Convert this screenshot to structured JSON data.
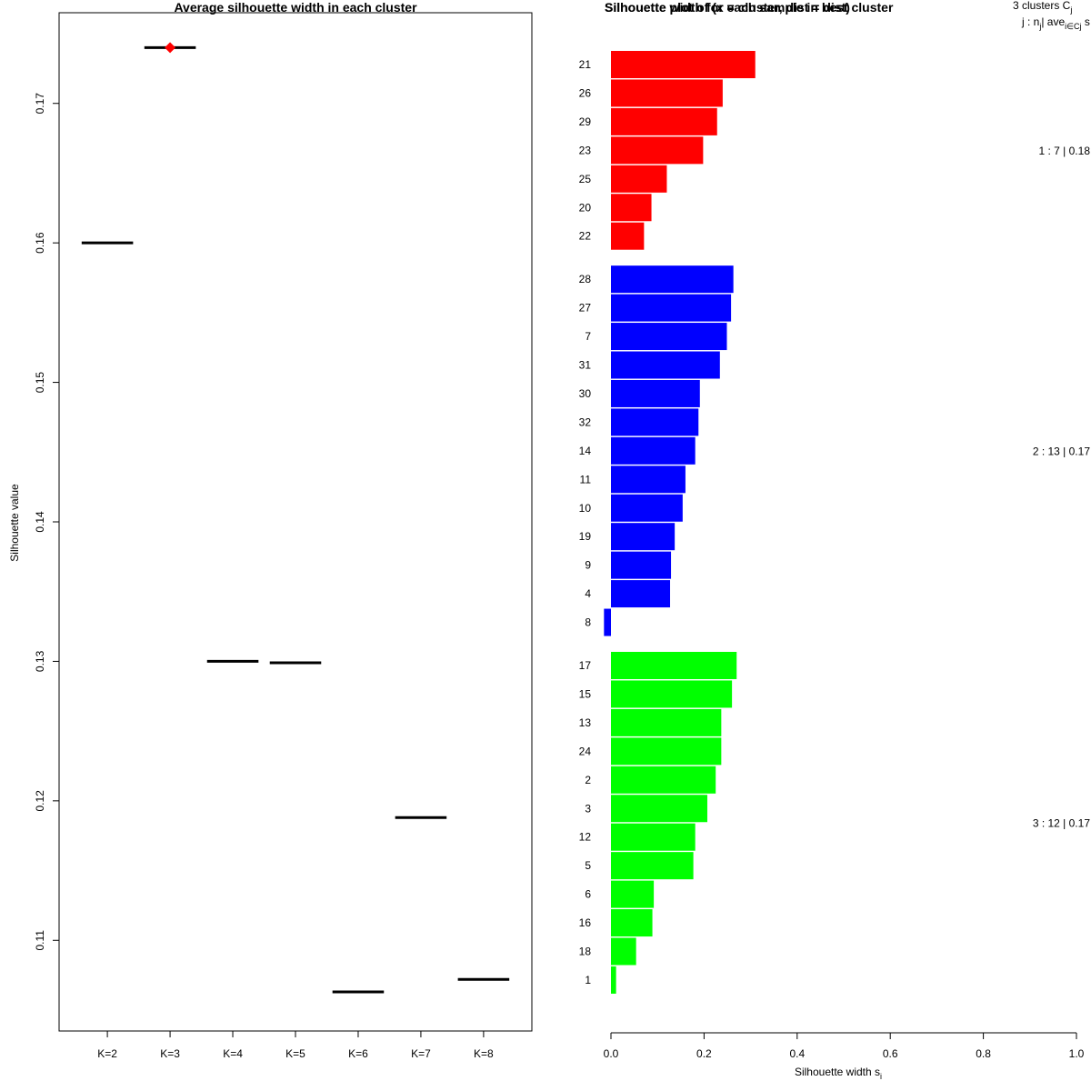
{
  "chart_data": [
    {
      "type": "scatter",
      "title": "Average silhouette width in each cluster",
      "xlabel": "",
      "ylabel": "Silhouette value",
      "categories": [
        "K=2",
        "K=3",
        "K=4",
        "K=5",
        "K=6",
        "K=7",
        "K=8"
      ],
      "values": [
        0.16,
        0.174,
        0.13,
        0.1299,
        0.1063,
        0.1188,
        0.1072
      ],
      "best_index": 1,
      "best_marker_color": "#ff0000",
      "y_ticks": [
        "0.11",
        "0.12",
        "0.13",
        "0.14",
        "0.15",
        "0.16",
        "0.17"
      ],
      "ylim": [
        0.1035,
        0.1765
      ]
    },
    {
      "type": "bar",
      "orientation": "horizontal",
      "title": "Silhouette width for each sample in best cluster",
      "title_overlap": "Silhouette plot of (x = cluster, dist = dist)",
      "xlabel": "Silhouette width s",
      "xlabel_subscript": "i",
      "x_ticks": [
        "0.0",
        "0.2",
        "0.4",
        "0.6",
        "0.8",
        "1.0"
      ],
      "xlim": [
        0,
        1
      ],
      "legend_header": {
        "line1": "3 clusters  C",
        "line1_sub": "j",
        "line2_a": "j :  n",
        "line2_a_sub": "j",
        "line2_b": "| ave",
        "line2_b_sub": "i∈Cj",
        "line2_c": " s"
      },
      "clusters": [
        {
          "id": 1,
          "color": "#ff0000",
          "summary": "1 :  7  |  0.18",
          "samples": [
            "21",
            "26",
            "29",
            "23",
            "25",
            "20",
            "22"
          ],
          "widths": [
            0.31,
            0.24,
            0.228,
            0.198,
            0.12,
            0.087,
            0.071
          ]
        },
        {
          "id": 2,
          "color": "#0000ff",
          "summary": "2 :  13  |  0.17",
          "samples": [
            "28",
            "27",
            "7",
            "31",
            "30",
            "32",
            "14",
            "11",
            "10",
            "19",
            "9",
            "4",
            "8"
          ],
          "widths": [
            0.263,
            0.258,
            0.249,
            0.234,
            0.191,
            0.188,
            0.181,
            0.16,
            0.154,
            0.137,
            0.129,
            0.127,
            -0.015
          ]
        },
        {
          "id": 3,
          "color": "#00ff00",
          "summary": "3 :  12  |  0.17",
          "samples": [
            "17",
            "15",
            "13",
            "24",
            "2",
            "3",
            "12",
            "5",
            "6",
            "16",
            "18",
            "1"
          ],
          "widths": [
            0.27,
            0.26,
            0.237,
            0.237,
            0.225,
            0.207,
            0.181,
            0.177,
            0.092,
            0.089,
            0.054,
            0.011
          ]
        }
      ]
    }
  ]
}
